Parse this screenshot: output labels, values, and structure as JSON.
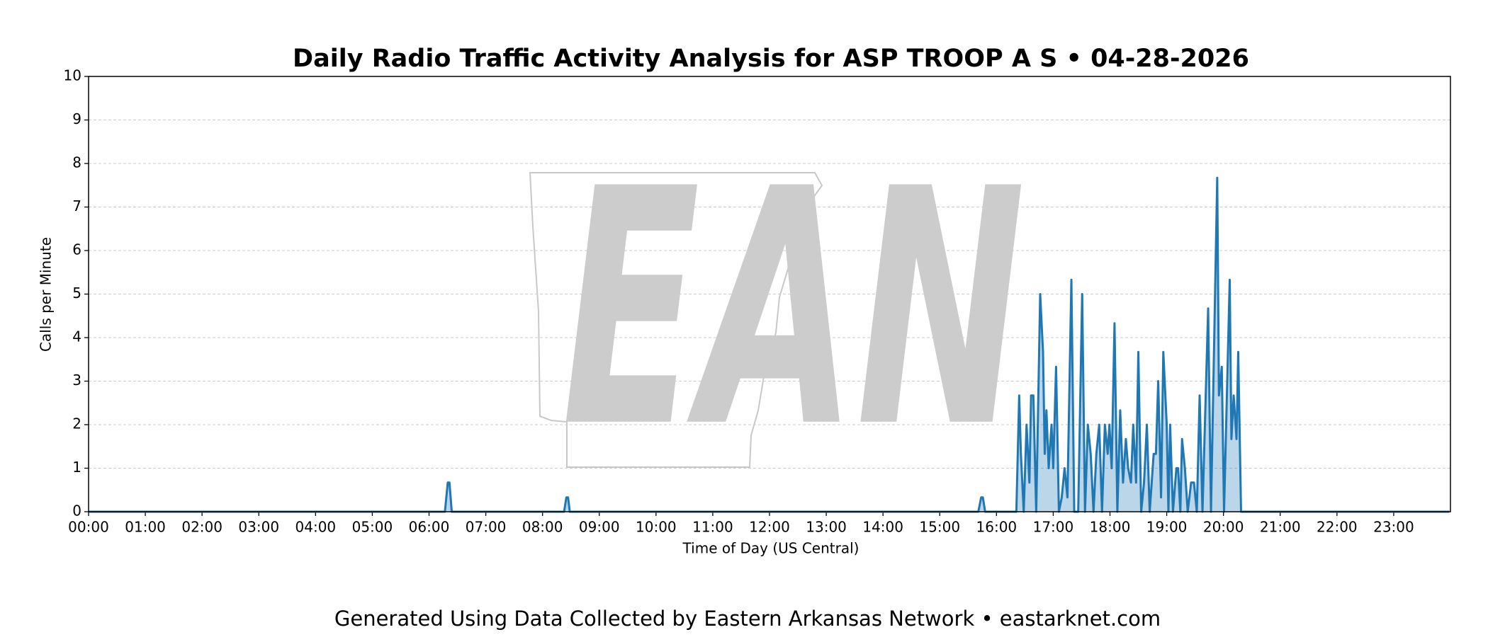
{
  "chart_data": {
    "type": "line",
    "title": "Daily Radio Traffic Activity Analysis for ASP TROOP A S • 04-28-2026",
    "xlabel": "Time of Day (US Central)",
    "ylabel": "Calls per Minute",
    "footer": "Generated Using Data Collected by Eastern Arkansas Network • eastarknet.com",
    "watermark": "EAN",
    "xlim": [
      0,
      24
    ],
    "ylim": [
      0,
      10
    ],
    "yticks": [
      0,
      1,
      2,
      3,
      4,
      5,
      6,
      7,
      8,
      9,
      10
    ],
    "xticks": [
      {
        "value": 0,
        "label": "00:00"
      },
      {
        "value": 1,
        "label": "01:00"
      },
      {
        "value": 2,
        "label": "02:00"
      },
      {
        "value": 3,
        "label": "03:00"
      },
      {
        "value": 4,
        "label": "04:00"
      },
      {
        "value": 5,
        "label": "05:00"
      },
      {
        "value": 6,
        "label": "06:00"
      },
      {
        "value": 7,
        "label": "07:00"
      },
      {
        "value": 8,
        "label": "08:00"
      },
      {
        "value": 9,
        "label": "09:00"
      },
      {
        "value": 10,
        "label": "10:00"
      },
      {
        "value": 11,
        "label": "11:00"
      },
      {
        "value": 12,
        "label": "12:00"
      },
      {
        "value": 13,
        "label": "13:00"
      },
      {
        "value": 14,
        "label": "14:00"
      },
      {
        "value": 15,
        "label": "15:00"
      },
      {
        "value": 16,
        "label": "16:00"
      },
      {
        "value": 17,
        "label": "17:00"
      },
      {
        "value": 18,
        "label": "18:00"
      },
      {
        "value": 19,
        "label": "19:00"
      },
      {
        "value": 20,
        "label": "20:00"
      },
      {
        "value": 21,
        "label": "21:00"
      },
      {
        "value": 22,
        "label": "22:00"
      },
      {
        "value": 23,
        "label": "23:00"
      }
    ],
    "grid": true,
    "fill": true,
    "color": "#1f77b4",
    "x": [
      0,
      6.28,
      6.33,
      6.36,
      6.4,
      8.38,
      8.42,
      8.45,
      8.48,
      15.68,
      15.73,
      15.76,
      15.8,
      16.35,
      16.4,
      16.43,
      16.48,
      16.53,
      16.58,
      16.61,
      16.65,
      16.7,
      16.77,
      16.82,
      16.85,
      16.88,
      16.92,
      16.97,
      17.0,
      17.05,
      17.1,
      17.15,
      17.2,
      17.25,
      17.32,
      17.37,
      17.44,
      17.51,
      17.56,
      17.61,
      17.66,
      17.71,
      17.76,
      17.81,
      17.86,
      17.91,
      17.96,
      17.99,
      18.03,
      18.08,
      18.13,
      18.18,
      18.23,
      18.28,
      18.32,
      18.37,
      18.41,
      18.46,
      18.5,
      18.55,
      18.6,
      18.65,
      18.7,
      18.77,
      18.81,
      18.85,
      18.9,
      18.94,
      19.0,
      19.03,
      19.06,
      19.11,
      19.17,
      19.2,
      19.24,
      19.27,
      19.32,
      19.37,
      19.43,
      19.48,
      19.53,
      19.58,
      19.63,
      19.73,
      19.78,
      19.89,
      19.92,
      19.97,
      20.01,
      20.11,
      20.14,
      20.18,
      20.23,
      20.26,
      20.31,
      23.98
    ],
    "values": [
      0,
      0,
      0.67,
      0.67,
      0,
      0,
      0.33,
      0.33,
      0,
      0,
      0.33,
      0.33,
      0,
      0,
      2.67,
      1.33,
      0,
      2,
      0.67,
      2.67,
      2.67,
      0,
      5,
      3.67,
      1.33,
      2.33,
      1,
      2,
      1,
      3.33,
      0,
      0.33,
      1,
      0.33,
      5.33,
      0,
      0,
      5,
      0,
      2,
      1.33,
      0,
      1.33,
      2,
      0,
      2,
      1.33,
      2,
      1,
      4.33,
      0,
      2.33,
      0.67,
      1.67,
      1,
      0.67,
      2,
      0.67,
      3.67,
      0,
      0.67,
      2,
      0,
      1.33,
      1.33,
      3,
      0.33,
      3.67,
      2,
      0,
      2,
      0,
      1,
      1,
      0,
      1.67,
      1,
      0,
      0.67,
      0.67,
      0,
      2.67,
      0,
      4.67,
      0,
      7.67,
      2.67,
      3.33,
      0,
      5.33,
      1.67,
      2.67,
      1.67,
      3.67,
      0,
      0
    ]
  }
}
